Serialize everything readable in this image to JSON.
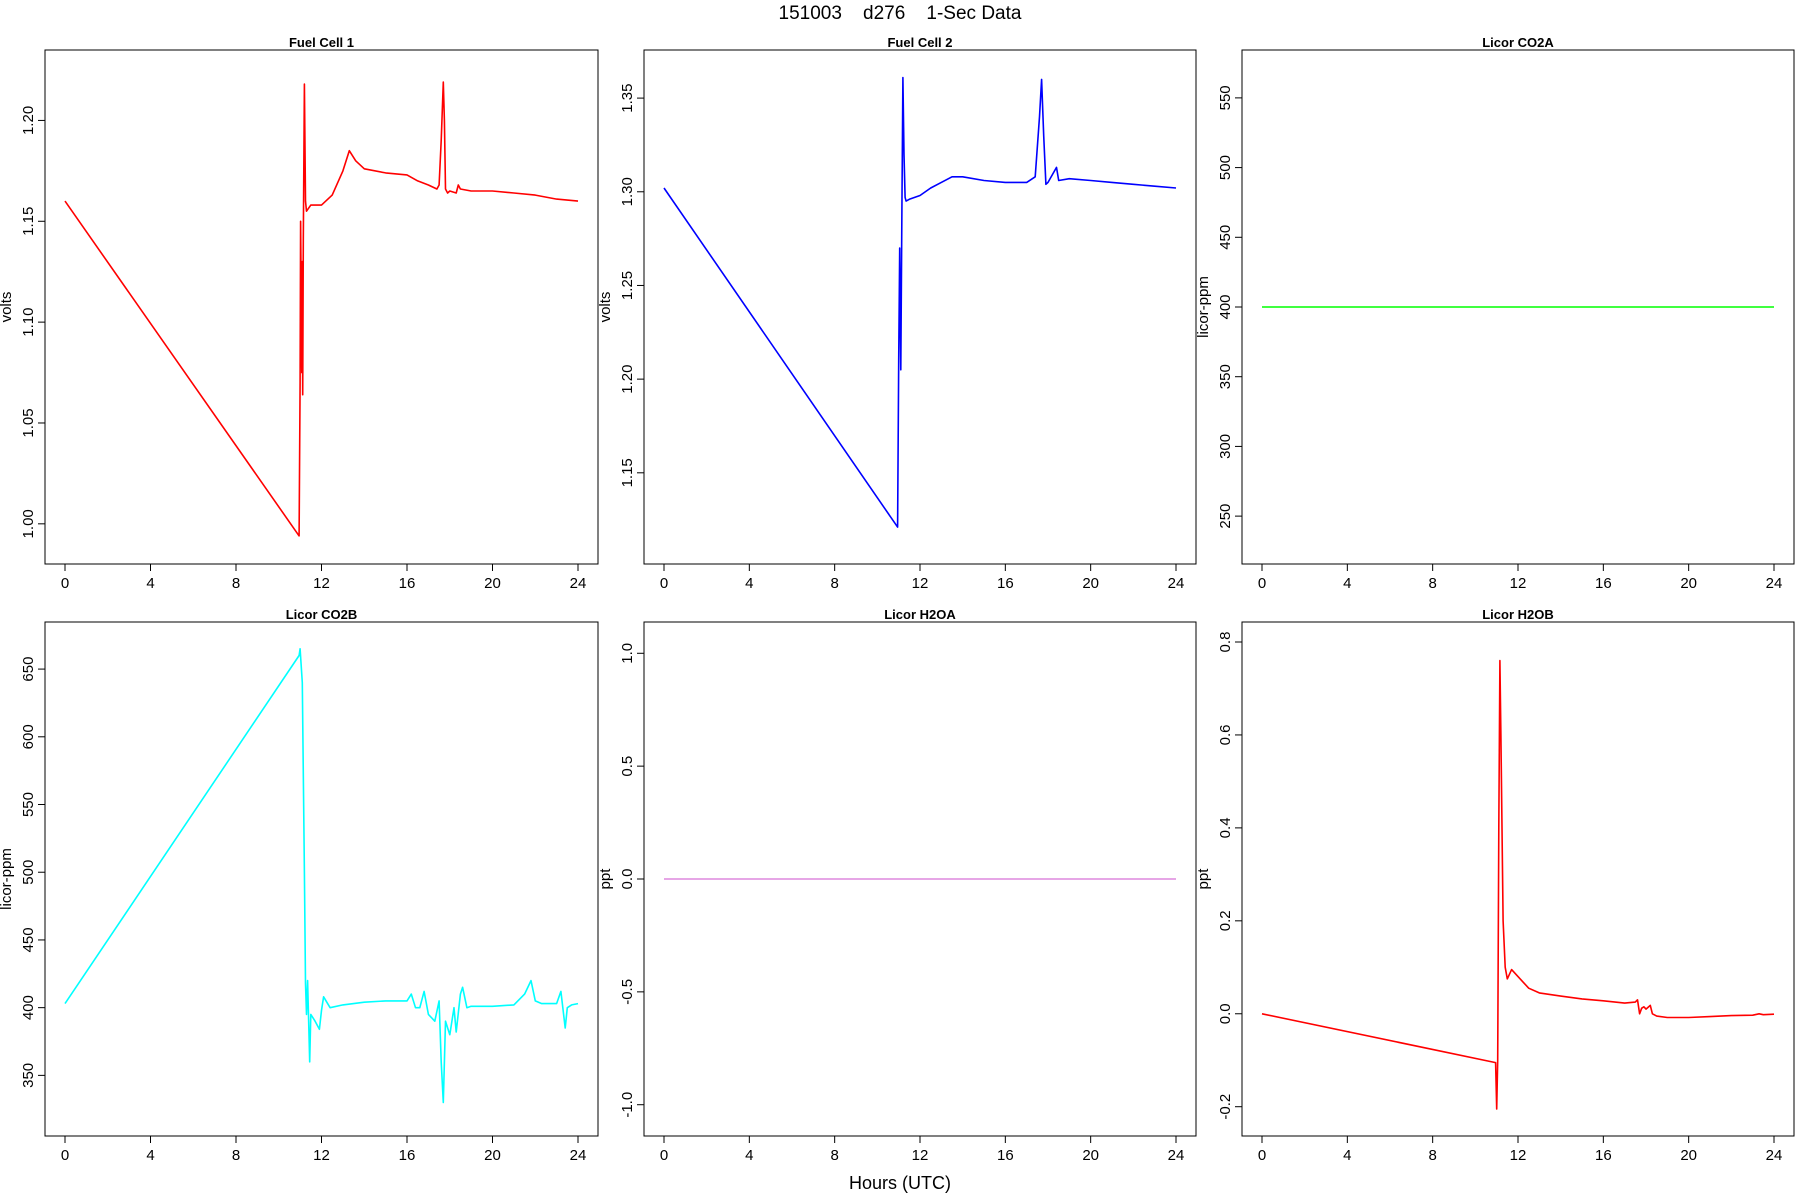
{
  "figure": {
    "title": "151003    d276    1-Sec Data",
    "xlabel": "Hours (UTC)"
  },
  "chart_data": [
    {
      "type": "line",
      "title": "Fuel Cell 1",
      "ylabel": "volts",
      "color": "#ff0000",
      "xlim": [
        0,
        24
      ],
      "ylim": [
        0.99,
        1.225
      ],
      "xticks": [
        0,
        4,
        8,
        12,
        16,
        20,
        24
      ],
      "yticks": [
        1.0,
        1.05,
        1.1,
        1.15,
        1.2
      ],
      "ytick_labels": [
        "1.00",
        "1.05",
        "1.10",
        "1.15",
        "1.20"
      ],
      "x": [
        0,
        10.95,
        11.0,
        11.02,
        11.08,
        11.1,
        11.12,
        11.15,
        11.2,
        11.25,
        11.3,
        11.5,
        12.0,
        12.5,
        13.0,
        13.3,
        13.6,
        14.0,
        15.0,
        16.0,
        16.5,
        17.0,
        17.4,
        17.5,
        17.6,
        17.7,
        17.75,
        17.8,
        17.9,
        18.0,
        18.3,
        18.4,
        18.5,
        19.0,
        20.0,
        21.0,
        22.0,
        23.0,
        24.0
      ],
      "y": [
        1.16,
        0.994,
        1.07,
        1.15,
        1.075,
        1.13,
        1.064,
        1.14,
        1.218,
        1.16,
        1.155,
        1.158,
        1.158,
        1.163,
        1.175,
        1.185,
        1.18,
        1.176,
        1.174,
        1.173,
        1.17,
        1.168,
        1.166,
        1.168,
        1.19,
        1.219,
        1.2,
        1.166,
        1.164,
        1.165,
        1.164,
        1.168,
        1.166,
        1.165,
        1.165,
        1.164,
        1.163,
        1.161,
        1.16
      ]
    },
    {
      "type": "line",
      "title": "Fuel Cell 2",
      "ylabel": "volts",
      "color": "#0000ff",
      "xlim": [
        0,
        24
      ],
      "ylim": [
        1.112,
        1.365
      ],
      "xticks": [
        0,
        4,
        8,
        12,
        16,
        20,
        24
      ],
      "yticks": [
        1.15,
        1.2,
        1.25,
        1.3,
        1.35
      ],
      "ytick_labels": [
        "1.15",
        "1.20",
        "1.25",
        "1.30",
        "1.35"
      ],
      "x": [
        0,
        10.95,
        11.0,
        11.05,
        11.1,
        11.15,
        11.2,
        11.25,
        11.3,
        11.35,
        11.5,
        12.0,
        12.5,
        13.0,
        13.5,
        14.0,
        15.0,
        16.0,
        17.0,
        17.4,
        17.6,
        17.7,
        17.8,
        17.9,
        18.0,
        18.4,
        18.5,
        19.0,
        20.0,
        21.0,
        22.0,
        23.0,
        24.0
      ],
      "y": [
        1.302,
        1.121,
        1.21,
        1.27,
        1.205,
        1.29,
        1.361,
        1.32,
        1.297,
        1.295,
        1.296,
        1.298,
        1.302,
        1.305,
        1.308,
        1.308,
        1.306,
        1.305,
        1.305,
        1.308,
        1.34,
        1.36,
        1.33,
        1.304,
        1.305,
        1.313,
        1.306,
        1.307,
        1.306,
        1.305,
        1.304,
        1.303,
        1.302
      ]
    },
    {
      "type": "line",
      "title": "Licor CO2A",
      "ylabel": "licor-ppm",
      "color": "#00ff00",
      "xlim": [
        0,
        24
      ],
      "ylim": [
        230,
        570
      ],
      "xticks": [
        0,
        4,
        8,
        12,
        16,
        20,
        24
      ],
      "yticks": [
        250,
        300,
        350,
        400,
        450,
        500,
        550
      ],
      "ytick_labels": [
        "250",
        "300",
        "350",
        "400",
        "450",
        "500",
        "550"
      ],
      "x": [
        0,
        24
      ],
      "y": [
        400,
        400
      ]
    },
    {
      "type": "line",
      "title": "Licor CO2B",
      "ylabel": "licor-ppm",
      "color": "#00ffff",
      "xlim": [
        0,
        24
      ],
      "ylim": [
        320,
        670
      ],
      "xticks": [
        0,
        4,
        8,
        12,
        16,
        20,
        24
      ],
      "yticks": [
        350,
        400,
        450,
        500,
        550,
        600,
        650
      ],
      "ytick_labels": [
        "350",
        "400",
        "450",
        "500",
        "550",
        "600",
        "650"
      ],
      "x": [
        0,
        10.95,
        11.0,
        11.1,
        11.2,
        11.25,
        11.3,
        11.35,
        11.45,
        11.5,
        11.7,
        11.9,
        12.0,
        12.1,
        12.4,
        13.0,
        14.0,
        15.0,
        16.0,
        16.2,
        16.4,
        16.6,
        16.8,
        17.0,
        17.3,
        17.5,
        17.6,
        17.7,
        17.8,
        18.0,
        18.2,
        18.3,
        18.5,
        18.6,
        18.8,
        19.0,
        20.0,
        21.0,
        21.5,
        21.8,
        22.0,
        22.3,
        23.0,
        23.2,
        23.4,
        23.5,
        23.7,
        24.0
      ],
      "y": [
        403,
        660,
        665,
        640,
        500,
        418,
        395,
        420,
        360,
        395,
        390,
        384,
        398,
        408,
        400,
        402,
        404,
        405,
        405,
        410,
        400,
        400,
        412,
        395,
        390,
        405,
        360,
        330,
        390,
        380,
        400,
        382,
        410,
        415,
        400,
        401,
        401,
        402,
        410,
        420,
        405,
        403,
        403,
        412,
        385,
        400,
        402,
        403
      ]
    },
    {
      "type": "line",
      "title": "Licor H2OA",
      "ylabel": "ppt",
      "color": "#dd88dd",
      "xlim": [
        0,
        24
      ],
      "ylim": [
        -1.05,
        1.05
      ],
      "xticks": [
        0,
        4,
        8,
        12,
        16,
        20,
        24
      ],
      "yticks": [
        -1.0,
        -0.5,
        0.0,
        0.5,
        1.0
      ],
      "ytick_labels": [
        "-1.0",
        "-0.5",
        "0.0",
        "0.5",
        "1.0"
      ],
      "x": [
        0,
        24
      ],
      "y": [
        0,
        0
      ]
    },
    {
      "type": "line",
      "title": "Licor H2OB",
      "ylabel": "ppt",
      "color": "#ff0000",
      "xlim": [
        0,
        24
      ],
      "ylim": [
        -0.22,
        0.8
      ],
      "xticks": [
        0,
        4,
        8,
        12,
        16,
        20,
        24
      ],
      "yticks": [
        -0.2,
        0.0,
        0.2,
        0.4,
        0.6,
        0.8
      ],
      "ytick_labels": [
        "-0.2",
        "0.0",
        "0.2",
        "0.4",
        "0.6",
        "0.8"
      ],
      "x": [
        0,
        10.95,
        11.0,
        11.05,
        11.1,
        11.15,
        11.2,
        11.3,
        11.4,
        11.5,
        11.7,
        12.0,
        12.5,
        13.0,
        14.0,
        15.0,
        16.0,
        17.0,
        17.5,
        17.6,
        17.7,
        17.8,
        17.9,
        18.0,
        18.2,
        18.3,
        18.5,
        19.0,
        20.0,
        21.0,
        22.0,
        23.0,
        23.3,
        23.5,
        24.0
      ],
      "y": [
        0.0,
        -0.105,
        -0.205,
        -0.1,
        0.4,
        0.76,
        0.6,
        0.2,
        0.1,
        0.075,
        0.095,
        0.08,
        0.055,
        0.045,
        0.038,
        0.032,
        0.028,
        0.023,
        0.025,
        0.03,
        0.0,
        0.012,
        0.015,
        0.01,
        0.018,
        0.0,
        -0.005,
        -0.008,
        -0.008,
        -0.006,
        -0.004,
        -0.003,
        0.0,
        -0.002,
        -0.001
      ]
    }
  ]
}
